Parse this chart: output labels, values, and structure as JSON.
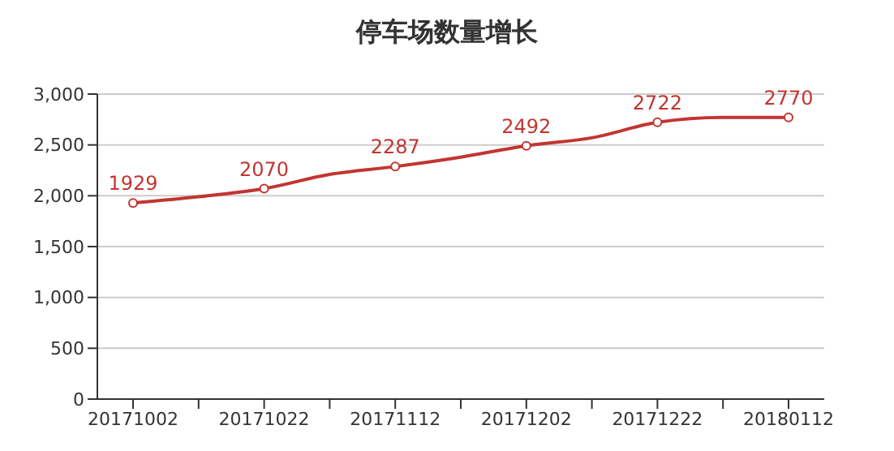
{
  "chart_data": {
    "type": "line",
    "title": "停车场数量增长",
    "categories": [
      "20171002",
      null,
      "20171022",
      null,
      "20171112",
      null,
      "20171202",
      null,
      "20171222",
      null,
      "20180112"
    ],
    "series": [
      {
        "color": "#c23531",
        "values": [
          1929,
          1990,
          2070,
          2210,
          2287,
          2380,
          2492,
          2570,
          2722,
          2770,
          2770
        ],
        "value_labels": [
          "1929",
          null,
          "2070",
          null,
          "2287",
          null,
          "2492",
          null,
          "2722",
          null,
          "2770"
        ]
      }
    ],
    "ylim": [
      0,
      3000
    ],
    "yticks": [
      {
        "value": 0,
        "label": "0"
      },
      {
        "value": 500,
        "label": "500"
      },
      {
        "value": 1000,
        "label": "1,000"
      },
      {
        "value": 1500,
        "label": "1,500"
      },
      {
        "value": 2000,
        "label": "2,000"
      },
      {
        "value": 2500,
        "label": "2,500"
      },
      {
        "value": 3000,
        "label": "3,000"
      }
    ],
    "grid": "y",
    "marker": "circle",
    "line_style": "solid"
  }
}
